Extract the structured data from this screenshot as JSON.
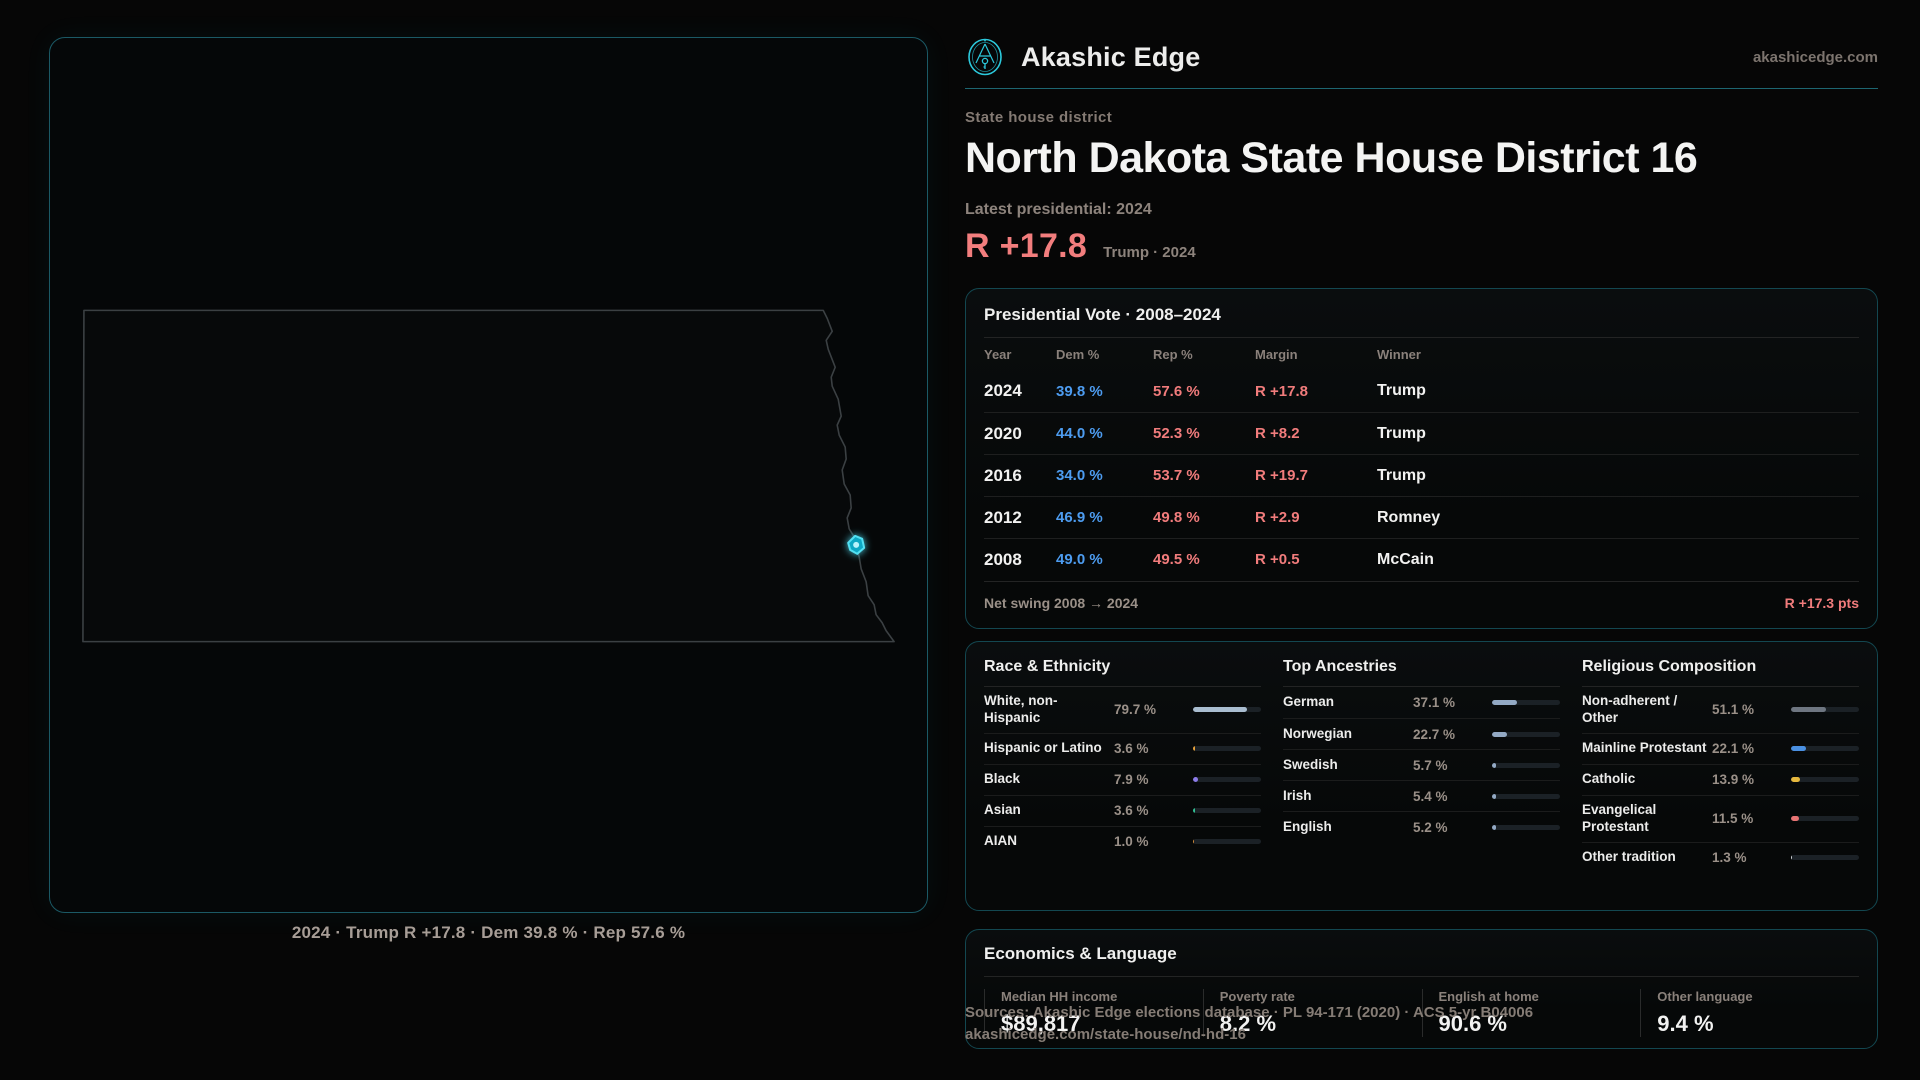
{
  "theme": {
    "accent": "#22d3ee",
    "rep_color": "#f27d7d",
    "dem_color": "#4d9cf0",
    "panel_border": "#134750"
  },
  "brand": {
    "name": "Akashic Edge",
    "domain": "akashicedge.com"
  },
  "header": {
    "kicker": "State house district",
    "title": "North Dakota State House District 16",
    "latest_label": "Latest presidential: 2024",
    "margin_value": "R +17.8",
    "margin_context": "Trump · 2024"
  },
  "map": {
    "caption": "2024 · Trump R +17.8 · Dem 39.8 % · Rep 57.6 %"
  },
  "presidential": {
    "title": "Presidential Vote · 2008–2024",
    "columns": [
      "Year",
      "Dem %",
      "Rep %",
      "Margin",
      "Winner"
    ],
    "rows": [
      {
        "year": "2024",
        "dem": "39.8 %",
        "rep": "57.6 %",
        "margin": "R +17.8",
        "winner": "Trump"
      },
      {
        "year": "2020",
        "dem": "44.0 %",
        "rep": "52.3 %",
        "margin": "R +8.2",
        "winner": "Trump"
      },
      {
        "year": "2016",
        "dem": "34.0 %",
        "rep": "53.7 %",
        "margin": "R +19.7",
        "winner": "Trump"
      },
      {
        "year": "2012",
        "dem": "46.9 %",
        "rep": "49.8 %",
        "margin": "R +2.9",
        "winner": "Romney"
      },
      {
        "year": "2008",
        "dem": "49.0 %",
        "rep": "49.5 %",
        "margin": "R +0.5",
        "winner": "McCain"
      }
    ],
    "net_swing_label": "Net swing 2008 → 2024",
    "net_swing_value": "R +17.3 pts"
  },
  "demographics": {
    "race": {
      "title": "Race & Ethnicity",
      "rows": [
        {
          "label": "White, non-Hispanic",
          "value": "79.7 %",
          "pct": 79.7,
          "color": "#a9bdd0"
        },
        {
          "label": "Hispanic or Latino",
          "value": "3.6 %",
          "pct": 3.6,
          "color": "#e8a23c"
        },
        {
          "label": "Black",
          "value": "7.9 %",
          "pct": 7.9,
          "color": "#8d7cea"
        },
        {
          "label": "Asian",
          "value": "3.6 %",
          "pct": 3.6,
          "color": "#31bf92"
        },
        {
          "label": "AIAN",
          "value": "1.0 %",
          "pct": 1.0,
          "color": "#cf8a3a"
        }
      ]
    },
    "ancestries": {
      "title": "Top Ancestries",
      "rows": [
        {
          "label": "German",
          "value": "37.1 %",
          "pct": 37.1,
          "color": "#93a9c4"
        },
        {
          "label": "Norwegian",
          "value": "22.7 %",
          "pct": 22.7,
          "color": "#93a9c4"
        },
        {
          "label": "Swedish",
          "value": "5.7 %",
          "pct": 5.7,
          "color": "#93a9c4"
        },
        {
          "label": "Irish",
          "value": "5.4 %",
          "pct": 5.4,
          "color": "#93a9c4"
        },
        {
          "label": "English",
          "value": "5.2 %",
          "pct": 5.2,
          "color": "#93a9c4"
        }
      ]
    },
    "religion": {
      "title": "Religious Composition",
      "rows": [
        {
          "label": "Non-adherent / Other",
          "value": "51.1 %",
          "pct": 51.1,
          "color": "#6e7681"
        },
        {
          "label": "Mainline Protestant",
          "value": "22.1 %",
          "pct": 22.1,
          "color": "#4a90e2"
        },
        {
          "label": "Catholic",
          "value": "13.9 %",
          "pct": 13.9,
          "color": "#e6b83e"
        },
        {
          "label": "Evangelical Protestant",
          "value": "11.5 %",
          "pct": 11.5,
          "color": "#e87474"
        },
        {
          "label": "Other tradition",
          "value": "1.3 %",
          "pct": 1.3,
          "color": "#cfd3d7"
        }
      ]
    }
  },
  "economics": {
    "title": "Economics & Language",
    "stats": [
      {
        "label": "Median HH income",
        "value": "$89,817"
      },
      {
        "label": "Poverty rate",
        "value": "8.2 %"
      },
      {
        "label": "English at home",
        "value": "90.6 %"
      },
      {
        "label": "Other language",
        "value": "9.4 %"
      }
    ]
  },
  "footer": {
    "line1": "Sources: Akashic Edge elections database · PL 94-171 (2020) · ACS 5-yr B04006",
    "line2": "akashicedge.com/state-house/nd-hd-16"
  }
}
